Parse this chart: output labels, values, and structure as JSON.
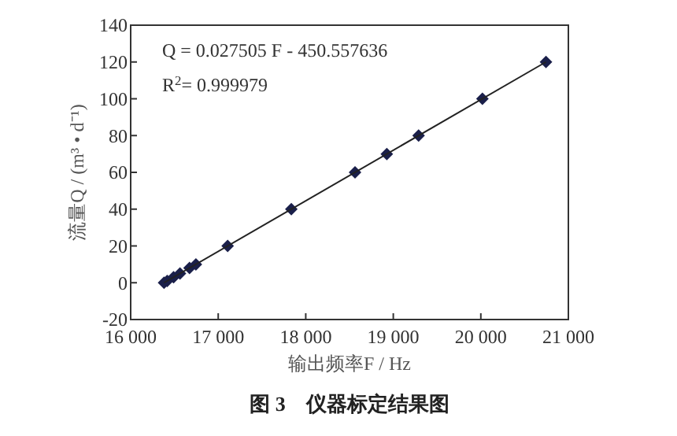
{
  "chart_data": {
    "type": "scatter",
    "title": "图 3　仪器标定结果图",
    "xlabel": "输出频率F / Hz",
    "ylabel": "流量Q / (m³ • d⁻¹)",
    "annotations": [
      "Q = 0.027505 F - 450.557636",
      "R$^{2}$= 0.999979"
    ],
    "xlim": [
      16000,
      21000
    ],
    "xticks": [
      {
        "value": 16000,
        "label": "16 000"
      },
      {
        "value": 17000,
        "label": "17 000"
      },
      {
        "value": 18000,
        "label": "18 000"
      },
      {
        "value": 19000,
        "label": "19 000"
      },
      {
        "value": 20000,
        "label": "20 000"
      },
      {
        "value": 21000,
        "label": "21 000"
      }
    ],
    "ylim": [
      -20,
      140
    ],
    "yticks": [
      -20,
      0,
      20,
      40,
      60,
      80,
      100,
      120,
      140
    ],
    "grid": false,
    "series": [
      {
        "marker": "diamond",
        "color": "#1a1f4a",
        "x": [
          16381,
          16417,
          16490,
          16563,
          16672,
          16745,
          17108,
          17835,
          18563,
          18926,
          19289,
          20018,
          20744
        ],
        "values": [
          0,
          1,
          3,
          5,
          8,
          10,
          20,
          40,
          60,
          70,
          80,
          100,
          120
        ]
      },
      {
        "type": "line",
        "color": "#222222",
        "x": [
          16381,
          20744
        ],
        "values": [
          0,
          120
        ]
      }
    ]
  }
}
